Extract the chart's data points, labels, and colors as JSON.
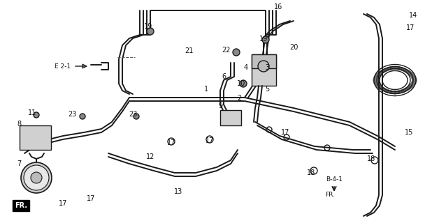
{
  "background_color": "#ffffff",
  "fig_width": 6.08,
  "fig_height": 3.2,
  "dpi": 100,
  "line_color": "#1a1a1a",
  "lw": 1.4,
  "lw_thin": 0.9,
  "lw_thick": 2.0
}
